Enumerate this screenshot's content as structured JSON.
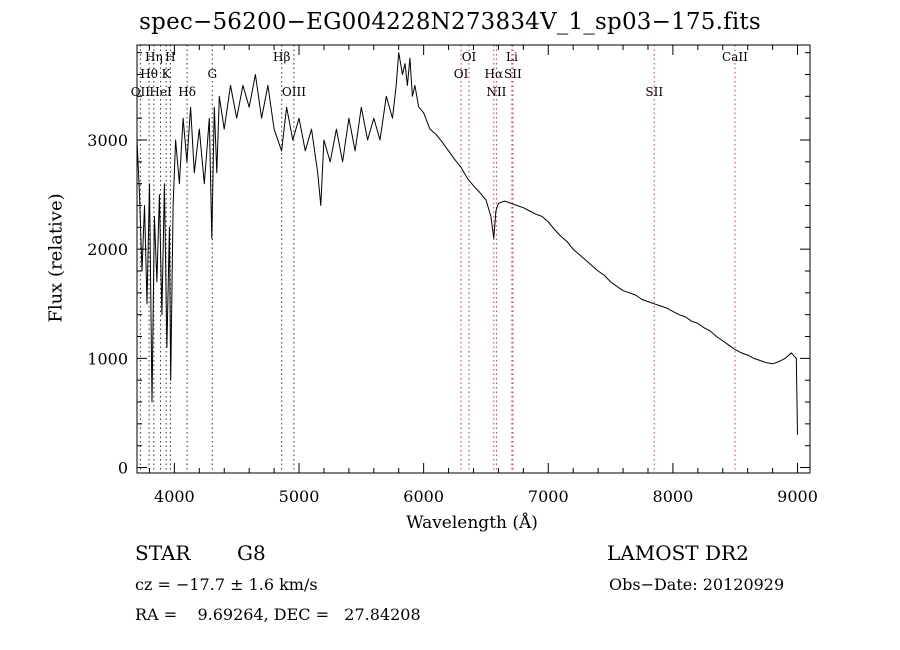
{
  "chart_data": {
    "type": "line",
    "title": "spec−56200−EG004228N273834V_1_sp03−175.fits",
    "xlabel": "Wavelength (Å)",
    "ylabel": "Flux (relative)",
    "xlim": [
      3700,
      9100
    ],
    "ylim": [
      -50,
      3870
    ],
    "x_ticks": [
      4000,
      5000,
      6000,
      7000,
      8000,
      9000
    ],
    "y_ticks": [
      0,
      1000,
      2000,
      3000
    ],
    "grid": false,
    "series": [
      {
        "color": "#000000",
        "x": [
          3700,
          3720,
          3740,
          3760,
          3780,
          3800,
          3820,
          3840,
          3860,
          3880,
          3900,
          3920,
          3940,
          3960,
          3970,
          3990,
          4010,
          4040,
          4070,
          4100,
          4130,
          4160,
          4200,
          4240,
          4280,
          4300,
          4320,
          4340,
          4360,
          4400,
          4450,
          4500,
          4550,
          4600,
          4650,
          4700,
          4750,
          4800,
          4860,
          4900,
          4950,
          5000,
          5050,
          5100,
          5150,
          5175,
          5200,
          5250,
          5300,
          5350,
          5400,
          5450,
          5500,
          5550,
          5600,
          5650,
          5700,
          5750,
          5780,
          5800,
          5830,
          5850,
          5870,
          5890,
          5910,
          5930,
          5960,
          6000,
          6050,
          6100,
          6150,
          6200,
          6250,
          6300,
          6350,
          6400,
          6450,
          6500,
          6540,
          6563,
          6580,
          6600,
          6650,
          6700,
          6750,
          6800,
          6850,
          6900,
          6950,
          7000,
          7050,
          7100,
          7150,
          7200,
          7250,
          7300,
          7350,
          7400,
          7450,
          7500,
          7550,
          7600,
          7650,
          7700,
          7750,
          7800,
          7850,
          7900,
          7950,
          8000,
          8050,
          8100,
          8150,
          8200,
          8250,
          8300,
          8350,
          8400,
          8450,
          8500,
          8550,
          8600,
          8650,
          8700,
          8750,
          8800,
          8850,
          8900,
          8950,
          8990,
          9000
        ],
        "values": [
          3000,
          2500,
          1800,
          2400,
          1500,
          2600,
          600,
          2300,
          1700,
          2500,
          1400,
          2600,
          1100,
          2200,
          800,
          2400,
          3000,
          2600,
          3200,
          2800,
          3300,
          2700,
          3100,
          2600,
          3200,
          2100,
          3300,
          2700,
          3400,
          3100,
          3500,
          3200,
          3500,
          3300,
          3600,
          3200,
          3500,
          3100,
          2900,
          3300,
          3000,
          3200,
          2900,
          3100,
          2700,
          2400,
          3000,
          2800,
          3100,
          2800,
          3200,
          2900,
          3300,
          3000,
          3200,
          3000,
          3400,
          3200,
          3500,
          3800,
          3600,
          3700,
          3500,
          3750,
          3400,
          3500,
          3300,
          3250,
          3100,
          3050,
          2980,
          2900,
          2820,
          2750,
          2650,
          2580,
          2520,
          2450,
          2300,
          2100,
          2350,
          2420,
          2440,
          2420,
          2400,
          2380,
          2350,
          2320,
          2300,
          2250,
          2180,
          2120,
          2070,
          2000,
          1950,
          1900,
          1850,
          1800,
          1760,
          1700,
          1660,
          1620,
          1600,
          1580,
          1540,
          1520,
          1500,
          1480,
          1460,
          1430,
          1400,
          1380,
          1340,
          1320,
          1280,
          1250,
          1200,
          1160,
          1120,
          1080,
          1050,
          1030,
          1000,
          980,
          960,
          950,
          970,
          1000,
          1050,
          1000,
          300
        ]
      }
    ],
    "lines": [
      {
        "name": "Hη",
        "x": 3835,
        "row": 0,
        "color": "#000000"
      },
      {
        "name": "H",
        "x": 3968,
        "row": 0,
        "color": "#000000"
      },
      {
        "name": "Hθ",
        "x": 3797,
        "row": 1,
        "color": "#000000"
      },
      {
        "name": "K",
        "x": 3934,
        "row": 1,
        "color": "#000000"
      },
      {
        "name": "G",
        "x": 4304,
        "row": 1,
        "color": "#000000"
      },
      {
        "name": "OII",
        "x": 3727,
        "row": 2,
        "color": "#000000"
      },
      {
        "name": "HeI",
        "x": 3889,
        "row": 2,
        "color": "#000000"
      },
      {
        "name": "Hδ",
        "x": 4102,
        "row": 2,
        "color": "#000000"
      },
      {
        "name": "Hβ",
        "x": 4861,
        "row": 0,
        "color": "#000000"
      },
      {
        "name": "OIII",
        "x": 4959,
        "row": 2,
        "color": "#000000"
      },
      {
        "name": "OI",
        "x": 6364,
        "row": 0,
        "color": "#dd0000"
      },
      {
        "name": "OI",
        "x": 6300,
        "row": 1,
        "color": "#dd0000"
      },
      {
        "name": "Hα",
        "x": 6563,
        "row": 1,
        "color": "#dd0000"
      },
      {
        "name": "NII",
        "x": 6584,
        "row": 2,
        "color": "#dd0000"
      },
      {
        "name": "Li",
        "x": 6708,
        "row": 0,
        "color": "#dd0000"
      },
      {
        "name": "SII",
        "x": 6716,
        "row": 1,
        "color": "#dd0000"
      },
      {
        "name": "SII",
        "x": 7850,
        "row": 2,
        "color": "#dd0000"
      },
      {
        "name": "CaII",
        "x": 8498,
        "row": 0,
        "color": "#dd0000"
      }
    ]
  },
  "info": {
    "object_type": "STAR",
    "subclass": "G8",
    "survey": "LAMOST DR2",
    "cz": "cz = −17.7 ± 1.6 km/s",
    "obs_date": "Obs−Date: 20120929",
    "ra_dec": "RA =    9.69264, DEC =   27.84208"
  }
}
